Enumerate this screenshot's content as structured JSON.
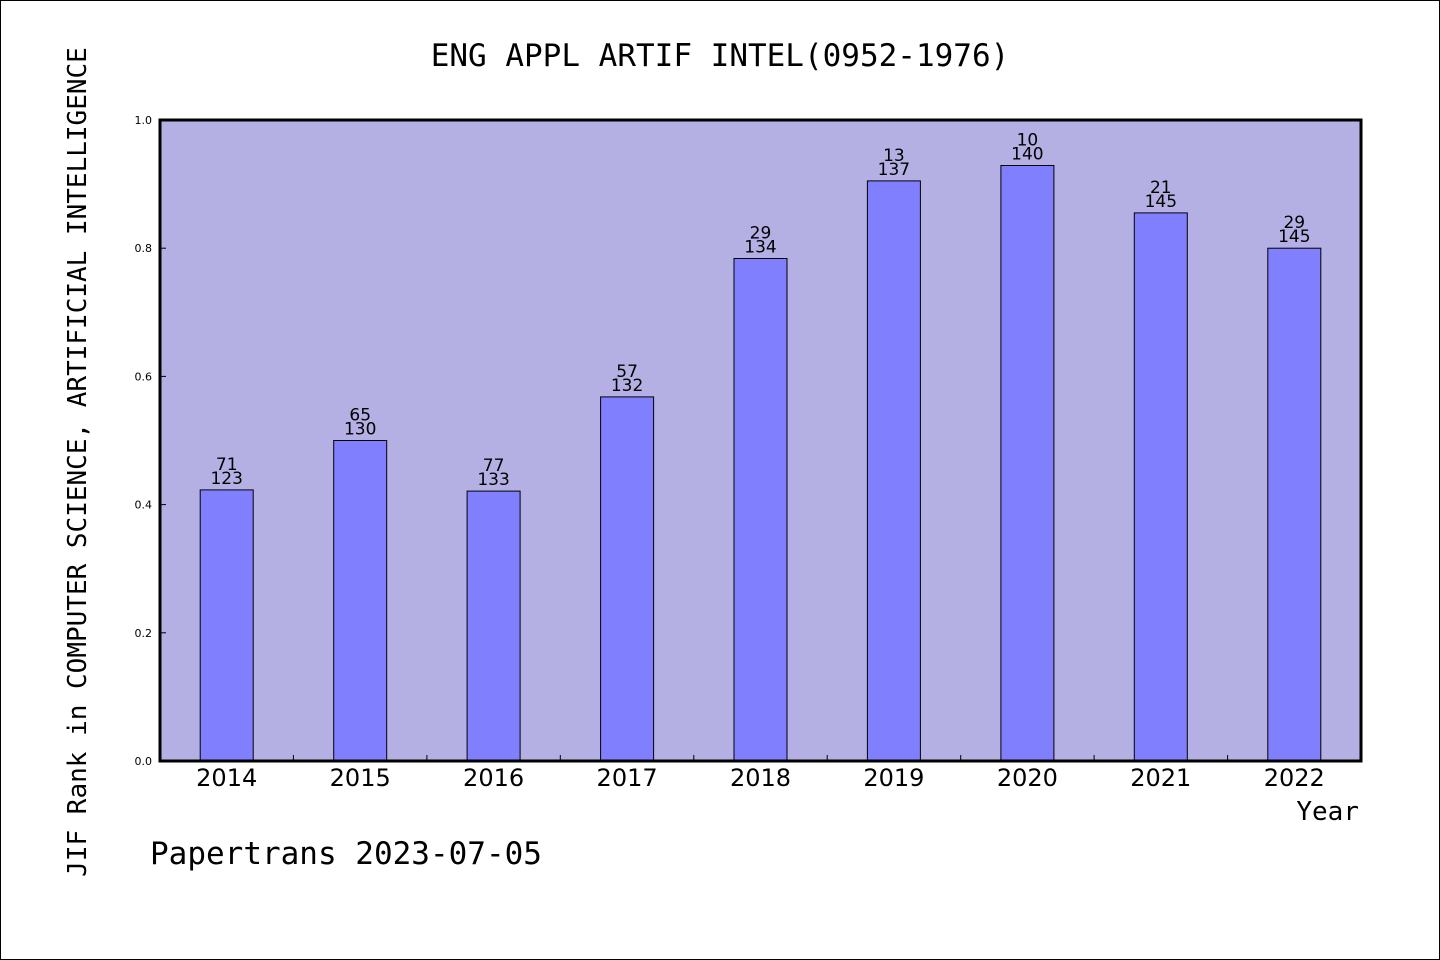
{
  "chart_data": {
    "type": "bar",
    "title": "ENG APPL ARTIF INTEL(0952-1976)",
    "xlabel": "Year",
    "ylabel": "JIF Rank in COMPUTER SCIENCE, ARTIFICIAL INTELLIGENCE",
    "ylim": [
      0.0,
      1.0
    ],
    "yticks": [
      "0.0",
      "0.2",
      "0.4",
      "0.6",
      "0.8",
      "1.0"
    ],
    "categories": [
      "2014",
      "2015",
      "2016",
      "2017",
      "2018",
      "2019",
      "2020",
      "2021",
      "2022"
    ],
    "values": [
      0.423,
      0.5,
      0.421,
      0.568,
      0.784,
      0.905,
      0.929,
      0.855,
      0.8
    ],
    "rank_labels": [
      "71",
      "65",
      "77",
      "57",
      "29",
      "13",
      "10",
      "21",
      "29"
    ],
    "total_labels": [
      "123",
      "130",
      "133",
      "132",
      "134",
      "137",
      "140",
      "145",
      "145"
    ],
    "grid": false,
    "colors": {
      "plot_background": "#b5b0e3",
      "bar_fill": "#8080ff",
      "bar_stroke": "#000000",
      "axis": "#000000"
    }
  },
  "footer": {
    "credit": "Papertrans 2023-07-05"
  }
}
